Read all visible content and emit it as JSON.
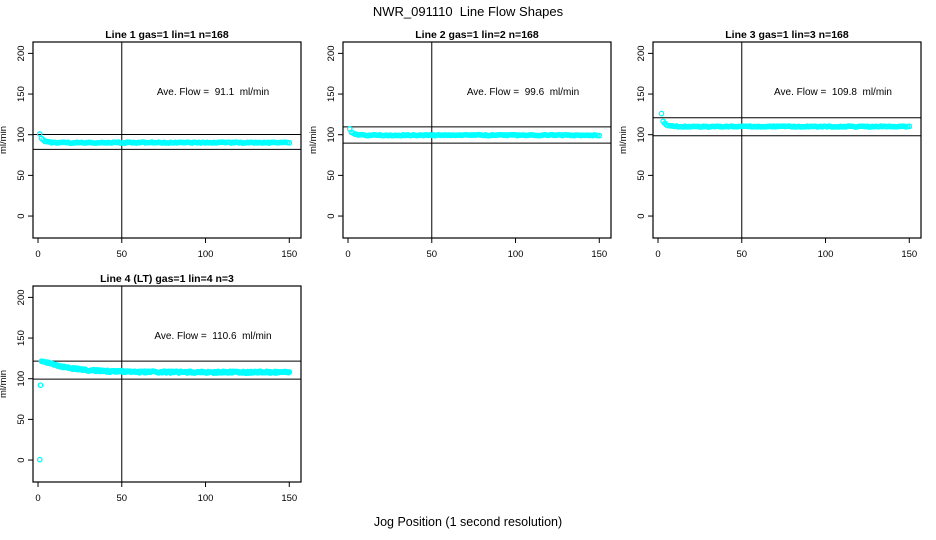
{
  "chart_data": {
    "type": "scatter",
    "title": "NWR_091110  Line Flow Shapes",
    "xlabel": "Jog Position (1 second resolution)",
    "ylabel": "ml/min",
    "marker": {
      "shape": "open-circle",
      "color": "#00FFFF",
      "radius": 2.2
    },
    "axes": {
      "xlim": [
        -3,
        157
      ],
      "ylim": [
        -27,
        214
      ],
      "x_ticks": [
        0,
        50,
        100,
        150
      ],
      "y_ticks": [
        0,
        50,
        100,
        150,
        200
      ],
      "grid": false
    },
    "vline_x": 50,
    "panels": [
      {
        "id": "line1",
        "title": "Line 1 gas=1 lin=1 n=168",
        "annotation": "Ave. Flow =  91.1  ml/min",
        "ave_flow_ml_min": 91.1,
        "upper_line": 100.2,
        "lower_line": 82.0,
        "series": {
          "x_start": 1,
          "x_end": 150,
          "x_step": 1,
          "initial": 100.5,
          "plateau": 90.3,
          "decay_tau": 1.6,
          "jitter": 1.2
        },
        "outlier_points": []
      },
      {
        "id": "line2",
        "title": "Line 2 gas=1 lin=2 n=168",
        "annotation": "Ave. Flow =  99.6  ml/min",
        "ave_flow_ml_min": 99.6,
        "upper_line": 109.6,
        "lower_line": 89.6,
        "series": {
          "x_start": 1,
          "x_end": 150,
          "x_step": 1,
          "initial": 107,
          "plateau": 99.4,
          "decay_tau": 1.5,
          "jitter": 1.2
        },
        "outlier_points": []
      },
      {
        "id": "line3",
        "title": "Line 3 gas=1 lin=3 n=168",
        "annotation": "Ave. Flow =  109.8  ml/min",
        "ave_flow_ml_min": 109.8,
        "upper_line": 120.8,
        "lower_line": 98.8,
        "series": {
          "x_start": 3,
          "x_end": 150,
          "x_step": 1,
          "initial": 116,
          "plateau": 110,
          "decay_tau": 2.2,
          "jitter": 1.2
        },
        "outlier_points": [
          [
            2,
            126
          ]
        ]
      },
      {
        "id": "line4",
        "title": "Line 4 (LT) gas=1 lin=4 n=3",
        "annotation": "Ave. Flow =  110.6  ml/min",
        "ave_flow_ml_min": 110.6,
        "upper_line": 121.7,
        "lower_line": 99.5,
        "series": {
          "x_start": 2,
          "x_end": 150,
          "x_step": 0.5,
          "initial": 122.5,
          "plateau": 108,
          "decay_tau": 16,
          "jitter": 2.2
        },
        "outlier_points": [
          [
            1,
            0.5
          ],
          [
            1.5,
            92
          ]
        ]
      }
    ]
  }
}
